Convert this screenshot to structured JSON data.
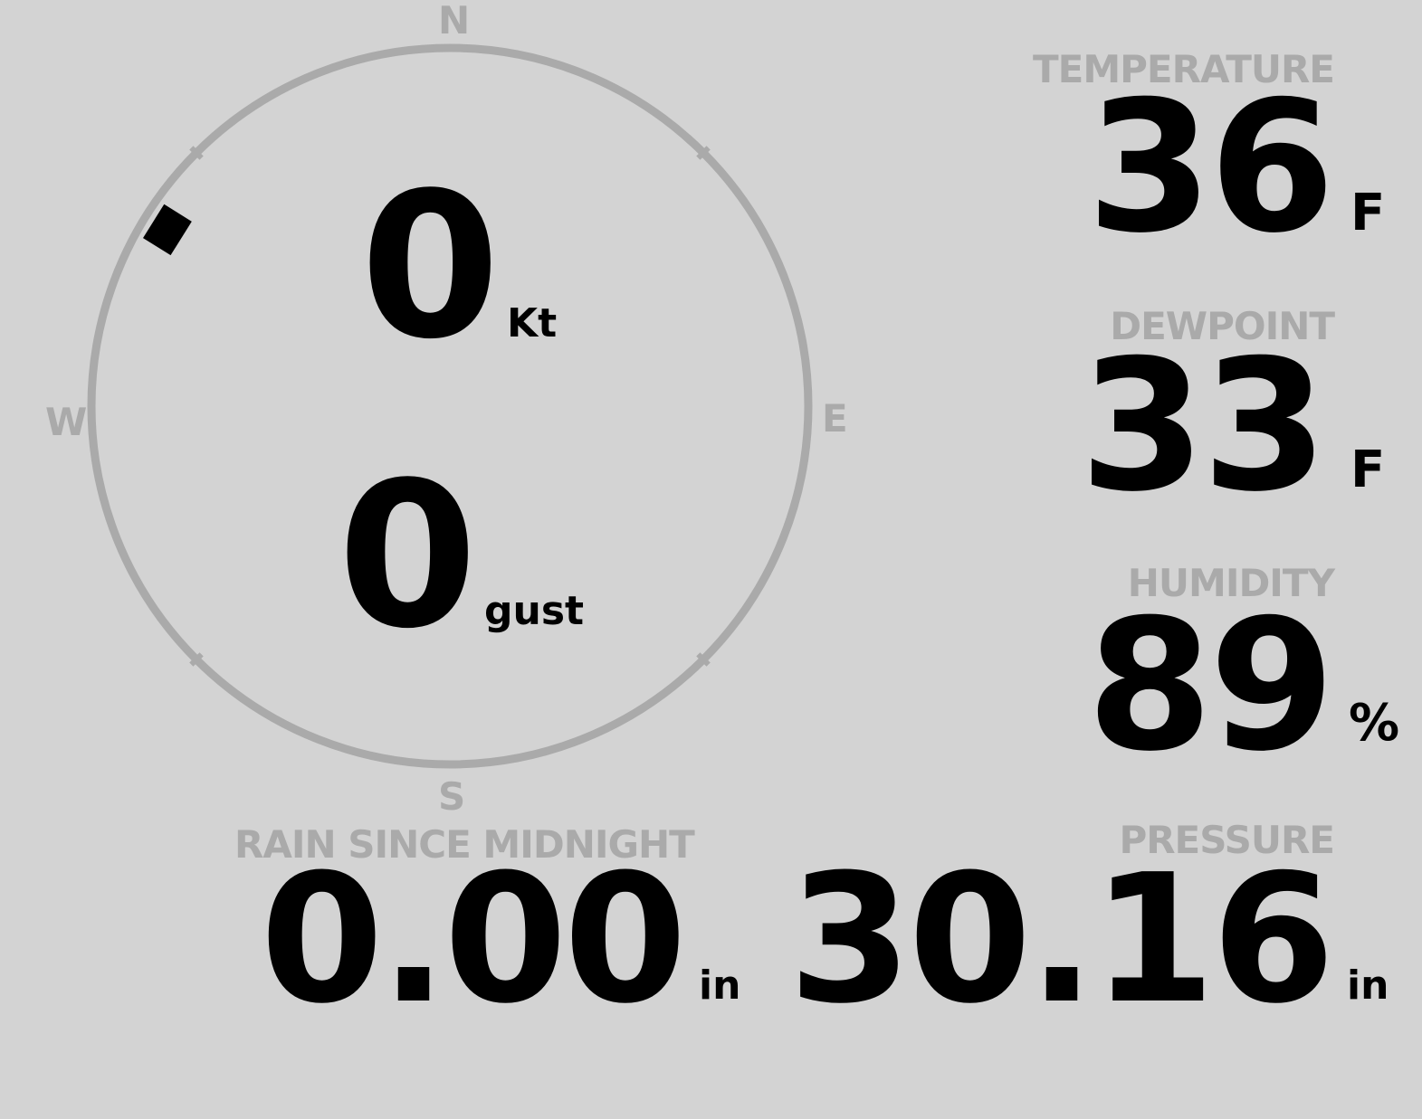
{
  "wind": {
    "compass": {
      "n": "N",
      "e": "E",
      "s": "S",
      "w": "W"
    },
    "direction_degrees": 302,
    "speed": "0",
    "speed_unit": "Kt",
    "gust": "0",
    "gust_unit": "gust",
    "colors": {
      "ring": "#aaaaaa",
      "marker": "#000000"
    }
  },
  "temperature": {
    "label": "TEMPERATURE",
    "value": "36",
    "unit": "F"
  },
  "dewpoint": {
    "label": "DEWPOINT",
    "value": "33",
    "unit": "F"
  },
  "humidity": {
    "label": "HUMIDITY",
    "value": "89",
    "unit": "%"
  },
  "rain": {
    "label": "RAIN SINCE MIDNIGHT",
    "value": "0.00",
    "unit": "in"
  },
  "pressure": {
    "label": "PRESSURE",
    "value": "30.16",
    "unit": "in"
  }
}
